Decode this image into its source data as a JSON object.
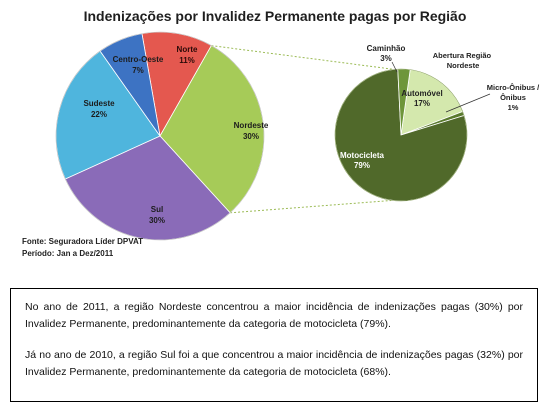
{
  "title": "Indenizações por Invalidez Permanente pagas por Região",
  "chart_data": [
    {
      "type": "pie",
      "title": "Indenizações por Invalidez Permanente pagas por Região",
      "labels": [
        "Norte",
        "Nordeste",
        "Sul",
        "Sudeste",
        "Centro-Oeste"
      ],
      "values": [
        11,
        30,
        30,
        22,
        7
      ],
      "display": [
        "11%",
        "30%",
        "30%",
        "22%",
        "7%"
      ],
      "colors": [
        "#e4584f",
        "#a6cb58",
        "#8a6bb8",
        "#4fb5dd",
        "#3d73c3"
      ]
    },
    {
      "type": "pie",
      "title": "",
      "labels": [
        "Automóvel",
        "Micro-Ônibus / Ônibus",
        "Motocicleta",
        "Caminhão"
      ],
      "values": [
        17,
        1,
        79,
        3
      ],
      "display": [
        "17%",
        "1%",
        "79%",
        "3%"
      ],
      "colors": [
        "#d4e8ad",
        "#5a7a2e",
        "#50692a",
        "#6e963a"
      ],
      "callout_title": "Abertura Região Nordeste"
    }
  ],
  "source": {
    "line1": "Fonte: Seguradora Líder DPVAT",
    "line2": "Período: Jan a Dez/2011"
  },
  "notes": [
    "No ano de 2011, a região Nordeste concentrou a maior incidência de indenizações pagas (30%) por Invalidez Permanente, predominantemente da categoria de motocicleta (79%).",
    "Já no ano de 2010, a região Sul foi a que concentrou a maior incidência de indenizações pagas (32%) por Invalidez Permanente, predominantemente da categoria de motocicleta (68%)."
  ]
}
